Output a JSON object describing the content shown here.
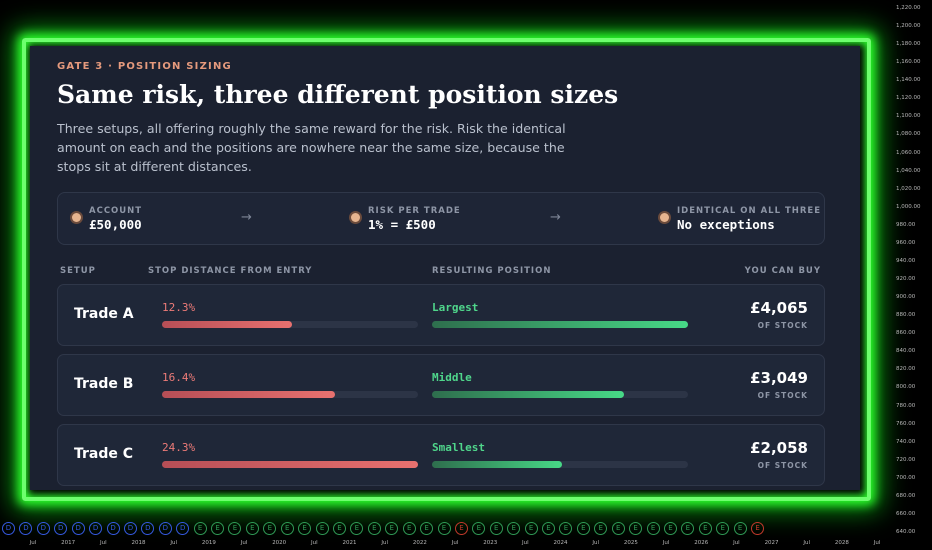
{
  "panel": {
    "eyebrow": "GATE 3 · POSITION SIZING",
    "title": "Same risk, three different position sizes",
    "intro": "Three setups, all offering roughly the same reward for the risk. Risk the identical amount on each and the positions are nowhere near the same size, because the stops sit at different distances.",
    "facts": [
      {
        "label": "ACCOUNT",
        "value": "£50,000"
      },
      {
        "label": "RISK PER TRADE",
        "value": "1% = £500"
      },
      {
        "label": "IDENTICAL ON ALL THREE",
        "value": "No exceptions"
      }
    ],
    "columns": [
      "SETUP",
      "STOP DISTANCE FROM ENTRY",
      "RESULTING POSITION",
      "YOU CAN BUY"
    ],
    "rows": [
      {
        "setup": "Trade A",
        "stop": {
          "value": 12.3,
          "label": "12.3%"
        },
        "position": "Largest",
        "buy": {
          "value": 4065,
          "label": "£4,065"
        },
        "unit": "OF STOCK"
      },
      {
        "setup": "Trade B",
        "stop": {
          "value": 16.4,
          "label": "16.4%"
        },
        "position": "Middle",
        "buy": {
          "value": 3049,
          "label": "£3,049"
        },
        "unit": "OF STOCK"
      },
      {
        "setup": "Trade C",
        "stop": {
          "value": 24.3,
          "label": "24.3%"
        },
        "position": "Smallest",
        "buy": {
          "value": 2058,
          "label": "£2,058"
        },
        "unit": "OF STOCK"
      }
    ]
  },
  "price_axis": [
    "1,220.00",
    "1,200.00",
    "1,180.00",
    "1,160.00",
    "1,140.00",
    "1,120.00",
    "1,100.00",
    "1,080.00",
    "1,060.00",
    "1,040.00",
    "1,020.00",
    "1,000.00",
    "980.00",
    "960.00",
    "940.00",
    "920.00",
    "900.00",
    "880.00",
    "860.00",
    "840.00",
    "820.00",
    "800.00",
    "780.00",
    "760.00",
    "740.00",
    "720.00",
    "700.00",
    "680.00",
    "660.00",
    "640.00"
  ],
  "time_axis": [
    "Jul",
    "2017",
    "Jul",
    "2018",
    "Jul",
    "2019",
    "Jul",
    "2020",
    "Jul",
    "2021",
    "Jul",
    "2022",
    "Jul",
    "2023",
    "Jul",
    "2024",
    "Jul",
    "2025",
    "Jul",
    "2026",
    "Jul",
    "2027",
    "Jul",
    "2028",
    "Jul"
  ],
  "markers": [
    {
      "label": "D",
      "color": "#3559e0"
    },
    {
      "label": "D",
      "color": "#3559e0"
    },
    {
      "label": "D",
      "color": "#3559e0"
    },
    {
      "label": "D",
      "color": "#3559e0"
    },
    {
      "label": "D",
      "color": "#3559e0"
    },
    {
      "label": "D",
      "color": "#3559e0"
    },
    {
      "label": "D",
      "color": "#3559e0"
    },
    {
      "label": "D",
      "color": "#3559e0"
    },
    {
      "label": "D",
      "color": "#3559e0"
    },
    {
      "label": "D",
      "color": "#3559e0"
    },
    {
      "label": "D",
      "color": "#3559e0"
    },
    {
      "label": "E",
      "color": "#2f9a55"
    },
    {
      "label": "E",
      "color": "#2f9a55"
    },
    {
      "label": "E",
      "color": "#2f9a55"
    },
    {
      "label": "E",
      "color": "#2f9a55"
    },
    {
      "label": "E",
      "color": "#2f9a55"
    },
    {
      "label": "E",
      "color": "#2f9a55"
    },
    {
      "label": "E",
      "color": "#2f9a55"
    },
    {
      "label": "E",
      "color": "#2f9a55"
    },
    {
      "label": "E",
      "color": "#2f9a55"
    },
    {
      "label": "E",
      "color": "#2f9a55"
    },
    {
      "label": "E",
      "color": "#2f9a55"
    },
    {
      "label": "E",
      "color": "#2f9a55"
    },
    {
      "label": "E",
      "color": "#2f9a55"
    },
    {
      "label": "E",
      "color": "#2f9a55"
    },
    {
      "label": "E",
      "color": "#2f9a55"
    },
    {
      "label": "E",
      "color": "#c0392b"
    },
    {
      "label": "E",
      "color": "#2f9a55"
    },
    {
      "label": "E",
      "color": "#2f9a55"
    },
    {
      "label": "E",
      "color": "#2f9a55"
    },
    {
      "label": "E",
      "color": "#2f9a55"
    },
    {
      "label": "E",
      "color": "#2f9a55"
    },
    {
      "label": "E",
      "color": "#2f9a55"
    },
    {
      "label": "E",
      "color": "#2f9a55"
    },
    {
      "label": "E",
      "color": "#2f9a55"
    },
    {
      "label": "E",
      "color": "#2f9a55"
    },
    {
      "label": "E",
      "color": "#2f9a55"
    },
    {
      "label": "E",
      "color": "#2f9a55"
    },
    {
      "label": "E",
      "color": "#2f9a55"
    },
    {
      "label": "E",
      "color": "#2f9a55"
    },
    {
      "label": "E",
      "color": "#2f9a55"
    },
    {
      "label": "E",
      "color": "#2f9a55"
    },
    {
      "label": "E",
      "color": "#2f9a55"
    },
    {
      "label": "E",
      "color": "#c0392b"
    }
  ]
}
